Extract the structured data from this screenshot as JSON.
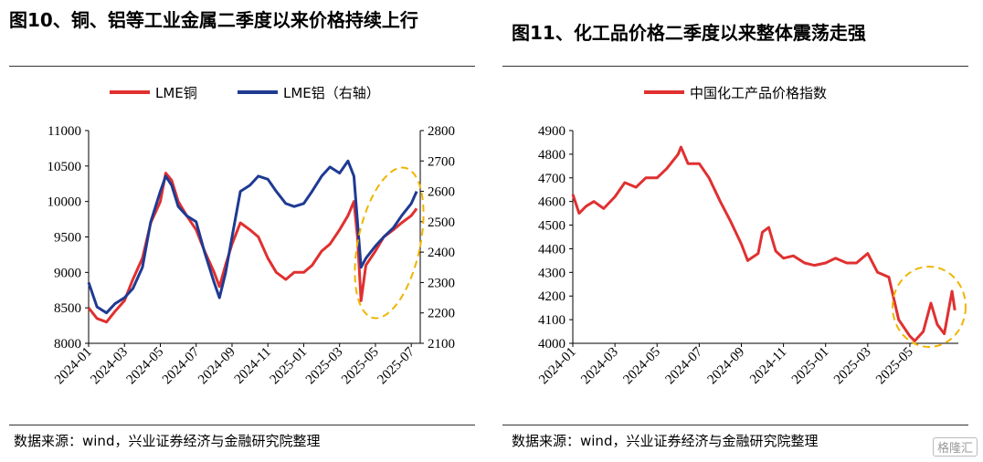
{
  "left": {
    "title": "图10、铜、铝等工业金属二季度以来价格持续上行",
    "source": "数据来源：wind，兴业证券经济与金融研究院整理",
    "chart_data": {
      "type": "line",
      "x_ticks": [
        "2024-01",
        "2024-03",
        "2024-05",
        "2024-07",
        "2024-09",
        "2024-11",
        "2025-01",
        "2025-03",
        "2025-05",
        "2025-07"
      ],
      "y_left": {
        "range": [
          8000,
          11000
        ],
        "ticks": [
          8000,
          8500,
          9000,
          9500,
          10000,
          10500,
          11000
        ]
      },
      "y_right": {
        "range": [
          2100,
          2800
        ],
        "ticks": [
          2100,
          2200,
          2300,
          2400,
          2500,
          2600,
          2700,
          2800
        ]
      },
      "legend": [
        "LME铜",
        "LME铝（右轴）"
      ],
      "series": [
        {
          "name": "LME铜",
          "axis": "left",
          "color": "#e03030",
          "x": [
            "2024-01",
            "2024-01-15",
            "2024-02",
            "2024-02-15",
            "2024-03",
            "2024-03-15",
            "2024-04",
            "2024-04-15",
            "2024-05",
            "2024-05-10",
            "2024-05-20",
            "2024-06",
            "2024-06-15",
            "2024-07",
            "2024-07-15",
            "2024-08",
            "2024-08-10",
            "2024-08-20",
            "2024-09",
            "2024-09-15",
            "2024-10",
            "2024-10-15",
            "2024-11",
            "2024-11-15",
            "2024-12",
            "2024-12-15",
            "2025-01",
            "2025-01-15",
            "2025-02",
            "2025-02-15",
            "2025-03",
            "2025-03-15",
            "2025-03-25",
            "2025-04",
            "2025-04-07",
            "2025-04-15",
            "2025-05",
            "2025-05-15",
            "2025-06",
            "2025-06-15",
            "2025-07",
            "2025-07-10"
          ],
          "y": [
            8500,
            8350,
            8300,
            8450,
            8600,
            8900,
            9200,
            9700,
            10000,
            10400,
            10300,
            10000,
            9800,
            9600,
            9300,
            9000,
            8800,
            9100,
            9400,
            9700,
            9600,
            9500,
            9200,
            9000,
            8900,
            9000,
            9000,
            9100,
            9300,
            9400,
            9600,
            9800,
            10000,
            9500,
            8600,
            9100,
            9300,
            9500,
            9600,
            9700,
            9800,
            9900
          ]
        },
        {
          "name": "LME铝（右轴）",
          "axis": "right",
          "color": "#1f3a93",
          "x": [
            "2024-01",
            "2024-01-15",
            "2024-02",
            "2024-02-15",
            "2024-03",
            "2024-03-15",
            "2024-04",
            "2024-04-15",
            "2024-05",
            "2024-05-10",
            "2024-05-20",
            "2024-06",
            "2024-06-15",
            "2024-07",
            "2024-07-15",
            "2024-08",
            "2024-08-10",
            "2024-08-20",
            "2024-09",
            "2024-09-15",
            "2024-10",
            "2024-10-15",
            "2024-11",
            "2024-11-15",
            "2024-12",
            "2024-12-15",
            "2025-01",
            "2025-01-15",
            "2025-02",
            "2025-02-15",
            "2025-03",
            "2025-03-15",
            "2025-03-25",
            "2025-04",
            "2025-04-07",
            "2025-04-15",
            "2025-05",
            "2025-05-15",
            "2025-06",
            "2025-06-15",
            "2025-07",
            "2025-07-10"
          ],
          "y": [
            2300,
            2220,
            2200,
            2230,
            2250,
            2280,
            2350,
            2500,
            2600,
            2650,
            2620,
            2550,
            2520,
            2500,
            2400,
            2300,
            2250,
            2330,
            2450,
            2600,
            2620,
            2650,
            2640,
            2600,
            2560,
            2550,
            2560,
            2600,
            2650,
            2680,
            2660,
            2700,
            2650,
            2500,
            2350,
            2380,
            2420,
            2450,
            2480,
            2520,
            2560,
            2600
          ]
        }
      ]
    }
  },
  "right": {
    "title": "图11、化工品价格二季度以来整体震荡走强",
    "source": "数据来源：wind，兴业证券经济与金融研究院整理",
    "watermark": "格隆汇",
    "chart_data": {
      "type": "line",
      "x_ticks": [
        "2024-01",
        "2024-03",
        "2024-05",
        "2024-07",
        "2024-09",
        "2024-11",
        "2025-01",
        "2025-03",
        "2025-05"
      ],
      "y_left": {
        "range": [
          4000,
          4900
        ],
        "ticks": [
          4000,
          4100,
          4200,
          4300,
          4400,
          4500,
          4600,
          4700,
          4800,
          4900
        ]
      },
      "legend": [
        "中国化工产品价格指数"
      ],
      "series": [
        {
          "name": "中国化工产品价格指数",
          "axis": "left",
          "color": "#e03030",
          "x": [
            "2024-01",
            "2024-01-10",
            "2024-01-20",
            "2024-02",
            "2024-02-15",
            "2024-03",
            "2024-03-15",
            "2024-04",
            "2024-04-15",
            "2024-05",
            "2024-05-15",
            "2024-06",
            "2024-06-05",
            "2024-06-15",
            "2024-07",
            "2024-07-15",
            "2024-08",
            "2024-08-15",
            "2024-09",
            "2024-09-10",
            "2024-09-25",
            "2024-10",
            "2024-10-10",
            "2024-10-20",
            "2024-11",
            "2024-11-15",
            "2024-12",
            "2024-12-15",
            "2025-01",
            "2025-01-15",
            "2025-02",
            "2025-02-15",
            "2025-03",
            "2025-03-15",
            "2025-04",
            "2025-04-15",
            "2025-05",
            "2025-05-08",
            "2025-05-20",
            "2025-06",
            "2025-06-10",
            "2025-06-20",
            "2025-07",
            "2025-07-05"
          ],
          "y": [
            4630,
            4550,
            4580,
            4600,
            4570,
            4620,
            4680,
            4660,
            4700,
            4700,
            4740,
            4800,
            4830,
            4760,
            4760,
            4700,
            4600,
            4520,
            4420,
            4350,
            4380,
            4470,
            4490,
            4390,
            4360,
            4370,
            4340,
            4330,
            4340,
            4360,
            4340,
            4340,
            4380,
            4300,
            4280,
            4100,
            4030,
            4010,
            4050,
            4170,
            4080,
            4040,
            4220,
            4140
          ]
        }
      ]
    }
  }
}
